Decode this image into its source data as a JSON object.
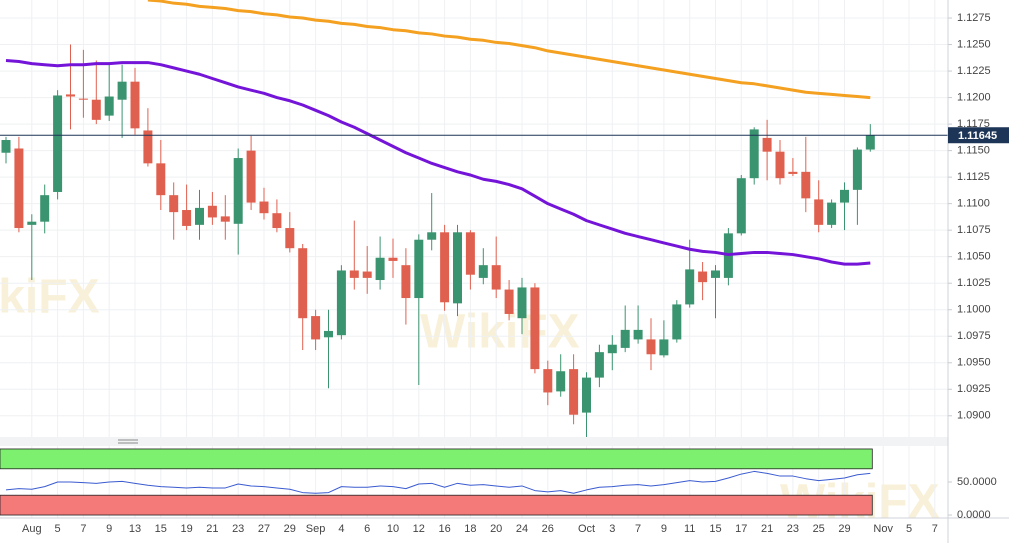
{
  "chart_data": [
    {
      "type": "candlestick",
      "categories": [
        null,
        null,
        "Aug",
        null,
        "5",
        null,
        "7",
        null,
        "9",
        null,
        "13",
        null,
        "15",
        null,
        "19",
        null,
        "21",
        null,
        "23",
        null,
        "27",
        null,
        "29",
        null,
        "Sep",
        null,
        "4",
        null,
        "6",
        null,
        "10",
        null,
        "12",
        null,
        "16",
        null,
        "18",
        null,
        "20",
        null,
        "24",
        null,
        "26",
        null,
        null,
        "Oct",
        null,
        "3",
        null,
        "7",
        null,
        "9",
        null,
        "11",
        null,
        "15",
        null,
        "17",
        null,
        "21",
        null,
        "23",
        null,
        "25",
        null,
        "29",
        null,
        null,
        "Nov",
        null,
        "5",
        null,
        "7"
      ],
      "open": [
        1.1148,
        1.1152,
        1.108,
        1.1083,
        1.1111,
        1.1203,
        1.1199,
        1.1198,
        1.1183,
        1.1198,
        1.1215,
        1.1169,
        1.1138,
        1.1108,
        1.1094,
        1.108,
        1.1098,
        1.1088,
        1.1081,
        1.115,
        1.1102,
        1.1091,
        1.1077,
        1.1058,
        1.0994,
        1.0974,
        1.0976,
        1.1037,
        1.1036,
        1.1028,
        1.1049,
        1.1042,
        1.1011,
        1.1066,
        1.1073,
        1.1006,
        1.1073,
        1.103,
        1.1042,
        1.1019,
        1.0992,
        1.1021,
        1.0944,
        1.0923,
        1.0944,
        1.0903,
        1.0936,
        1.0959,
        1.0964,
        1.0972,
        1.0972,
        1.0957,
        1.0972,
        1.1005,
        1.1036,
        1.103,
        1.103,
        1.1072,
        1.1124,
        1.1162,
        1.1149,
        1.113,
        1.113,
        1.1104,
        1.108,
        1.1101,
        1.1113,
        1.1151,
        null,
        null,
        null,
        null,
        null
      ],
      "high": [
        1.1163,
        1.1163,
        1.109,
        1.1118,
        1.1207,
        1.125,
        1.1245,
        1.1235,
        1.1231,
        1.1231,
        1.1228,
        1.119,
        1.116,
        1.112,
        1.1118,
        1.1113,
        1.1111,
        1.1108,
        1.1152,
        1.1164,
        1.1115,
        1.1104,
        1.1092,
        1.1062,
        1.1,
        1.1,
        1.1042,
        1.1084,
        1.106,
        1.1069,
        1.1067,
        1.1058,
        1.1071,
        1.111,
        1.108,
        1.108,
        1.1075,
        1.1058,
        1.1069,
        1.1028,
        1.103,
        1.1025,
        1.0952,
        1.0958,
        1.0958,
        1.0941,
        1.0967,
        1.0976,
        1.1004,
        1.1004,
        1.0992,
        1.099,
        1.1009,
        1.1066,
        1.1045,
        1.1042,
        1.1077,
        1.1127,
        1.1172,
        1.1179,
        1.116,
        1.1143,
        1.1163,
        1.1122,
        1.1104,
        1.112,
        1.1153,
        1.1175,
        null,
        null,
        null,
        null,
        null
      ],
      "low": [
        1.1138,
        1.1073,
        1.1028,
        1.1072,
        1.1104,
        1.117,
        1.1181,
        1.1175,
        1.1178,
        1.1162,
        1.1165,
        1.1135,
        1.1094,
        1.1066,
        1.1075,
        1.1066,
        1.108,
        1.1066,
        1.1052,
        1.1094,
        1.1085,
        1.1073,
        1.1054,
        1.0962,
        1.0962,
        1.0926,
        1.0972,
        1.1019,
        1.1015,
        1.1019,
        1.103,
        1.0986,
        1.0929,
        1.1056,
        1.0999,
        1.0994,
        1.1019,
        1.1024,
        1.1011,
        1.099,
        1.0977,
        1.094,
        1.091,
        1.0918,
        1.0892,
        1.088,
        1.0927,
        1.0943,
        1.096,
        1.0968,
        1.0943,
        1.0955,
        1.0969,
        1.1002,
        1.1009,
        1.0992,
        1.1023,
        1.107,
        1.1118,
        1.1122,
        1.1118,
        1.1126,
        1.1092,
        1.1073,
        1.1077,
        1.1075,
        1.108,
        1.1149,
        null,
        null,
        null,
        null,
        null
      ],
      "close": [
        1.116,
        1.1077,
        1.1083,
        1.1108,
        1.1202,
        1.1201,
        1.1198,
        1.1179,
        1.1201,
        1.1215,
        1.1171,
        1.1138,
        1.1108,
        1.1092,
        1.1079,
        1.1096,
        1.1087,
        1.1083,
        1.1143,
        1.1101,
        1.1091,
        1.1077,
        1.1058,
        1.0992,
        1.0972,
        1.098,
        1.1037,
        1.103,
        1.103,
        1.1049,
        1.1046,
        1.1011,
        1.1066,
        1.1073,
        1.1007,
        1.1073,
        1.1033,
        1.1042,
        1.1019,
        1.0996,
        1.1021,
        1.0944,
        1.0922,
        1.0942,
        1.0901,
        1.0936,
        1.096,
        1.0967,
        1.0981,
        1.0981,
        1.0958,
        1.0972,
        1.1005,
        1.1038,
        1.1026,
        1.1037,
        1.1072,
        1.1124,
        1.117,
        1.1149,
        1.1124,
        1.1128,
        1.1105,
        1.108,
        1.1101,
        1.1113,
        1.1151,
        1.11645,
        null,
        null,
        null,
        null,
        null
      ],
      "up_color": "#3b9470",
      "down_color": "#e0604f",
      "series": [
        {
          "color": "#f4a020",
          "values": [
            null,
            null,
            null,
            null,
            null,
            null,
            null,
            null,
            null,
            null,
            null,
            1.1292,
            1.1291,
            1.1289,
            1.1288,
            1.1286,
            1.1285,
            1.1284,
            1.1282,
            1.1281,
            1.1279,
            1.1278,
            1.1276,
            1.1275,
            1.1273,
            1.1272,
            1.127,
            1.1269,
            1.1267,
            1.1266,
            1.1264,
            1.1263,
            1.1261,
            1.126,
            1.1258,
            1.1257,
            1.1255,
            1.1254,
            1.1252,
            1.1251,
            1.1249,
            1.1247,
            1.1244,
            1.1242,
            1.124,
            1.1238,
            1.1236,
            1.1234,
            1.1232,
            1.123,
            1.1228,
            1.1226,
            1.1224,
            1.1222,
            1.122,
            1.1218,
            1.1216,
            1.1214,
            1.1213,
            1.1211,
            1.1209,
            1.1207,
            1.1205,
            1.1204,
            1.1203,
            1.1202,
            1.1201,
            1.12,
            null,
            null,
            null,
            null,
            null
          ]
        },
        {
          "color": "#7414d8",
          "values": [
            1.1235,
            1.1234,
            1.1232,
            1.1231,
            1.123,
            1.1231,
            1.1231,
            1.1232,
            1.1232,
            1.1233,
            1.1233,
            1.1233,
            1.1231,
            1.1228,
            1.1225,
            1.1222,
            1.1218,
            1.1214,
            1.121,
            1.1207,
            1.1204,
            1.12,
            1.1197,
            1.1193,
            1.1188,
            1.1183,
            1.1177,
            1.1172,
            1.1166,
            1.116,
            1.1154,
            1.1148,
            1.1143,
            1.1138,
            1.1134,
            1.113,
            1.1127,
            1.1123,
            1.1121,
            1.1118,
            1.1114,
            1.1107,
            1.11,
            1.1095,
            1.109,
            1.1084,
            1.108,
            1.1076,
            1.1072,
            1.1069,
            1.1066,
            1.1063,
            1.106,
            1.1057,
            1.1055,
            1.1054,
            1.1052,
            1.1053,
            1.1054,
            1.1054,
            1.1053,
            1.1052,
            1.105,
            1.1048,
            1.1045,
            1.1043,
            1.1043,
            1.1044,
            null,
            null,
            null,
            null,
            null
          ]
        }
      ],
      "last_price": 1.11645,
      "last_price_color": "#1d3557",
      "ylim": [
        1.088,
        1.1292
      ],
      "yticks": [
        {
          "value": 1.09,
          "label": "1.0900"
        },
        {
          "value": 1.0925,
          "label": "1.0925"
        },
        {
          "value": 1.095,
          "label": "1.0950"
        },
        {
          "value": 1.0975,
          "label": "1.0975"
        },
        {
          "value": 1.1,
          "label": "1.1000"
        },
        {
          "value": 1.1025,
          "label": "1.1025"
        },
        {
          "value": 1.105,
          "label": "1.1050"
        },
        {
          "value": 1.1075,
          "label": "1.1075"
        },
        {
          "value": 1.11,
          "label": "1.1100"
        },
        {
          "value": 1.1125,
          "label": "1.1125"
        },
        {
          "value": 1.115,
          "label": "1.1150"
        },
        {
          "value": 1.1175,
          "label": "1.1175"
        },
        {
          "value": 1.12,
          "label": "1.1200"
        },
        {
          "value": 1.1225,
          "label": "1.1225"
        },
        {
          "value": 1.125,
          "label": "1.1250"
        },
        {
          "value": 1.1275,
          "label": "1.1275"
        }
      ],
      "grid": true,
      "watermark": "WikiFX"
    },
    {
      "type": "line",
      "series": [
        {
          "color": "#3a5bd0",
          "values": [
            38,
            40,
            39,
            43,
            50,
            50,
            49,
            48,
            50,
            51,
            48,
            45,
            43,
            42,
            41,
            42,
            41,
            41,
            47,
            44,
            43,
            41,
            39,
            34,
            33,
            34,
            43,
            42,
            42,
            44,
            43,
            40,
            47,
            48,
            42,
            48,
            45,
            46,
            44,
            42,
            44,
            37,
            35,
            37,
            33,
            38,
            42,
            43,
            45,
            46,
            44,
            46,
            49,
            52,
            50,
            51,
            56,
            62,
            66,
            63,
            59,
            59,
            55,
            52,
            54,
            56,
            61,
            63,
            null,
            null,
            null,
            null,
            null
          ]
        }
      ],
      "ylim": [
        -4.5,
        104.5
      ],
      "yticks": [
        {
          "value": 50,
          "label": "50.0000"
        },
        {
          "value": 0,
          "label": "0.0000"
        }
      ],
      "bands": [
        {
          "from": 70,
          "to": 100,
          "color": "#7ef070"
        },
        {
          "from": 0,
          "to": 30,
          "color": "#f47a7a"
        }
      ]
    }
  ]
}
